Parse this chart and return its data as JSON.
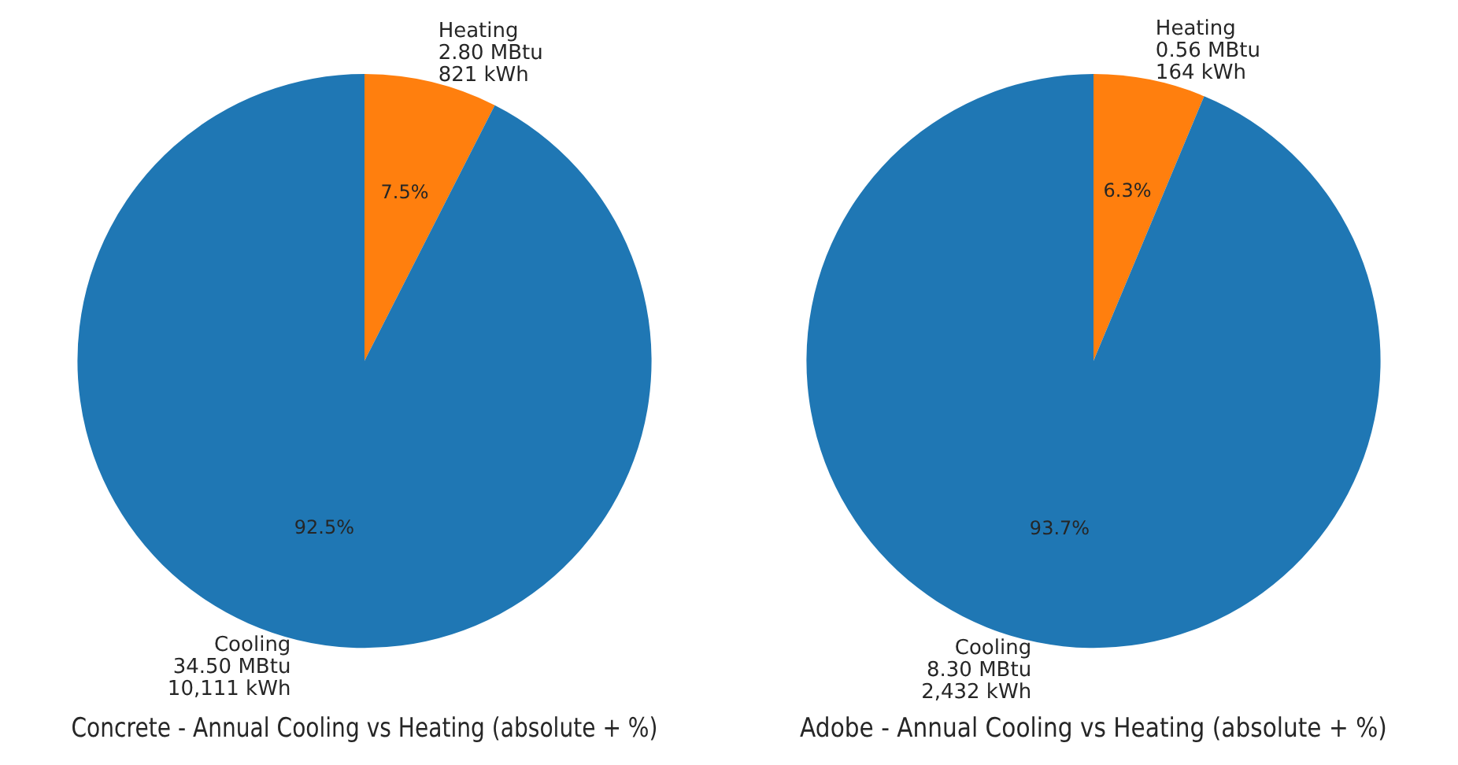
{
  "chart_data": [
    {
      "type": "pie",
      "title": "Concrete - Annual Cooling vs Heating (absolute + %)",
      "categories": [
        "Heating\n2.80 MBtu\n821 kWh",
        "Cooling\n34.50 MBtu\n10,111 kWh"
      ],
      "values": [
        7.5,
        92.5
      ],
      "colors": [
        "#ff7f0e",
        "#1f77b4"
      ],
      "value_labels": [
        "7.5%",
        "92.5%"
      ]
    },
    {
      "type": "pie",
      "title": "Adobe - Annual Cooling vs Heating (absolute + %)",
      "categories": [
        "Heating\n0.56 MBtu\n164 kWh",
        "Cooling\n8.30 MBtu\n2,432 kWh"
      ],
      "values": [
        6.3,
        93.7
      ],
      "colors": [
        "#ff7f0e",
        "#1f77b4"
      ],
      "value_labels": [
        "6.3%",
        "93.7%"
      ]
    }
  ]
}
